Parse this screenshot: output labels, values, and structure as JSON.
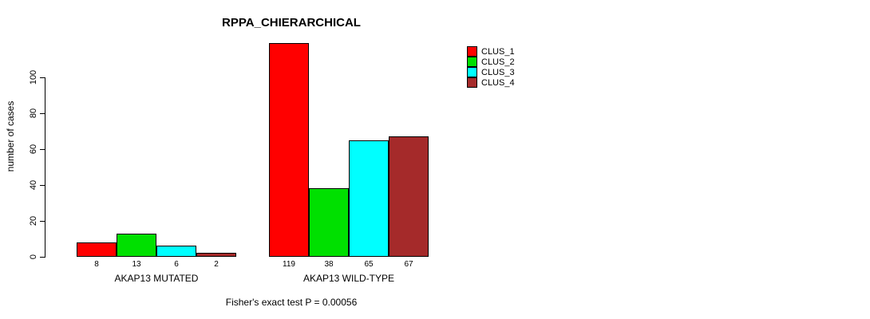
{
  "chart_data": {
    "type": "bar",
    "title": "RPPA_CHIERARCHICAL",
    "ylabel": "number of cases",
    "footnote": "Fisher's exact test P = 0.00056",
    "yticks": [
      0,
      20,
      40,
      60,
      80,
      100
    ],
    "ylim": [
      0,
      120
    ],
    "grid": false,
    "legend_position": "top-right",
    "series": [
      {
        "name": "CLUS_1",
        "color": "#ff0000"
      },
      {
        "name": "CLUS_2",
        "color": "#00e000"
      },
      {
        "name": "CLUS_3",
        "color": "#00ffff"
      },
      {
        "name": "CLUS_4",
        "color": "#a52a2a"
      }
    ],
    "groups": [
      {
        "label": "AKAP13 MUTATED",
        "values": [
          8,
          13,
          6,
          2
        ]
      },
      {
        "label": "AKAP13 WILD-TYPE",
        "values": [
          119,
          38,
          65,
          67
        ]
      }
    ]
  }
}
